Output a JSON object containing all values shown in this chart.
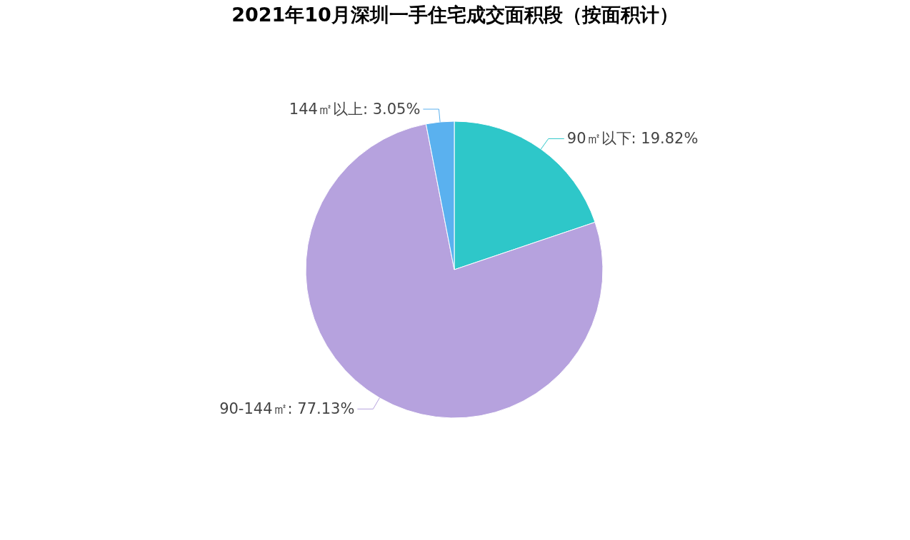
{
  "chart_data": {
    "type": "pie",
    "title": "2021年10月深圳一手住宅成交面积段（按面积计）",
    "categories": [
      "90㎡以下",
      "90-144㎡",
      "144㎡以上"
    ],
    "values": [
      19.82,
      77.13,
      3.05
    ],
    "colors": [
      "#2ec7c9",
      "#b6a2de",
      "#5ab1ef"
    ],
    "value_labels": [
      "19.82%",
      "77.13%",
      "3.05%"
    ]
  }
}
